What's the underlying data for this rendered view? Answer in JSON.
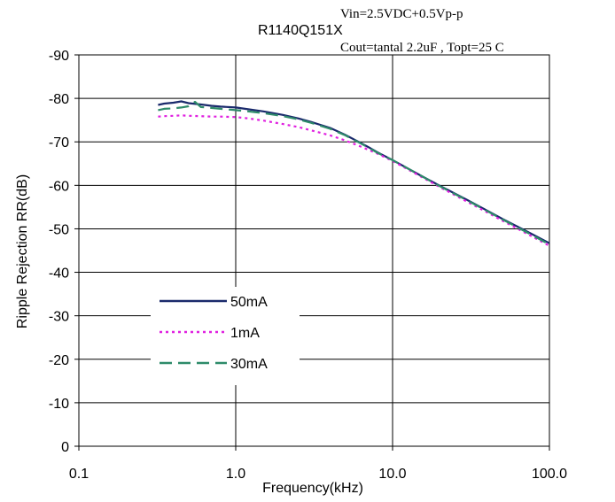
{
  "chart_data": {
    "type": "line",
    "title": "R1140Q151X",
    "conditions": {
      "line1": "Vin=2.5VDC+0.5Vp-p",
      "line2": "Cout=tantal 2.2uF , Topt=25  C"
    },
    "xlabel": "Frequency(kHz)",
    "ylabel": "Ripple Rejection RR(dB)",
    "x_scale": "log",
    "xlim": [
      0.1,
      100.0
    ],
    "ylim": [
      0,
      -90
    ],
    "y_inverted": true,
    "grid": true,
    "x_ticks": [
      {
        "value": 0.1,
        "label": "0.1"
      },
      {
        "value": 1.0,
        "label": "1.0"
      },
      {
        "value": 10.0,
        "label": "10.0"
      },
      {
        "value": 100.0,
        "label": "100.0"
      }
    ],
    "y_ticks": [
      {
        "value": -90,
        "label": "-90"
      },
      {
        "value": -80,
        "label": "-80"
      },
      {
        "value": -70,
        "label": "-70"
      },
      {
        "value": -60,
        "label": "-60"
      },
      {
        "value": -50,
        "label": "-50"
      },
      {
        "value": -40,
        "label": "-40"
      },
      {
        "value": -30,
        "label": "-30"
      },
      {
        "value": -20,
        "label": "-20"
      },
      {
        "value": -10,
        "label": "-10"
      },
      {
        "value": 0,
        "label": "0"
      }
    ],
    "legend_position": "center-left",
    "series": [
      {
        "name": "50mA",
        "color": "#1a2a6c",
        "style": "solid",
        "x": [
          0.32,
          0.35,
          0.4,
          0.45,
          0.5,
          0.6,
          0.7,
          0.8,
          1.0,
          1.2,
          1.5,
          2.0,
          2.5,
          3.0,
          4.0,
          5.0,
          6.0,
          7.0,
          8.0,
          10.0,
          15.0,
          20.0,
          30.0,
          40.0,
          50.0,
          70.0,
          100.0
        ],
        "y": [
          -78.5,
          -78.8,
          -79.0,
          -79.3,
          -78.9,
          -78.6,
          -78.3,
          -78.1,
          -77.9,
          -77.5,
          -77.0,
          -76.2,
          -75.4,
          -74.6,
          -73.2,
          -71.6,
          -70.1,
          -68.8,
          -67.6,
          -65.8,
          -62.3,
          -59.9,
          -56.6,
          -54.2,
          -52.3,
          -49.6,
          -46.7
        ]
      },
      {
        "name": "1mA",
        "color": "#e020e0",
        "style": "dotted",
        "x": [
          0.32,
          0.35,
          0.4,
          0.45,
          0.5,
          0.6,
          0.7,
          0.8,
          1.0,
          1.2,
          1.5,
          2.0,
          2.5,
          3.0,
          4.0,
          5.0,
          6.0,
          7.0,
          8.0,
          10.0,
          15.0,
          20.0,
          30.0,
          40.0,
          50.0,
          70.0,
          100.0
        ],
        "y": [
          -75.8,
          -75.9,
          -76.0,
          -76.1,
          -76.0,
          -75.9,
          -75.8,
          -75.8,
          -75.7,
          -75.4,
          -74.9,
          -74.1,
          -73.4,
          -72.7,
          -71.5,
          -70.3,
          -69.2,
          -68.2,
          -67.3,
          -65.6,
          -62.1,
          -59.6,
          -56.2,
          -53.8,
          -51.9,
          -49.1,
          -46.1
        ]
      },
      {
        "name": "30mA",
        "color": "#2e8b6a",
        "style": "dashed",
        "x": [
          0.32,
          0.35,
          0.4,
          0.45,
          0.5,
          0.55,
          0.6,
          0.7,
          0.8,
          1.0,
          1.2,
          1.5,
          2.0,
          2.5,
          3.0,
          4.0,
          5.0,
          6.0,
          7.0,
          8.0,
          10.0,
          15.0,
          20.0,
          30.0,
          40.0,
          50.0,
          70.0,
          100.0
        ],
        "y": [
          -77.3,
          -77.6,
          -77.7,
          -77.9,
          -78.2,
          -79.2,
          -78.0,
          -77.8,
          -77.6,
          -77.3,
          -77.0,
          -76.6,
          -75.9,
          -75.2,
          -74.4,
          -73.0,
          -71.5,
          -70.0,
          -68.7,
          -67.5,
          -65.8,
          -62.3,
          -59.8,
          -56.5,
          -54.1,
          -52.2,
          -49.4,
          -46.4
        ]
      }
    ]
  }
}
